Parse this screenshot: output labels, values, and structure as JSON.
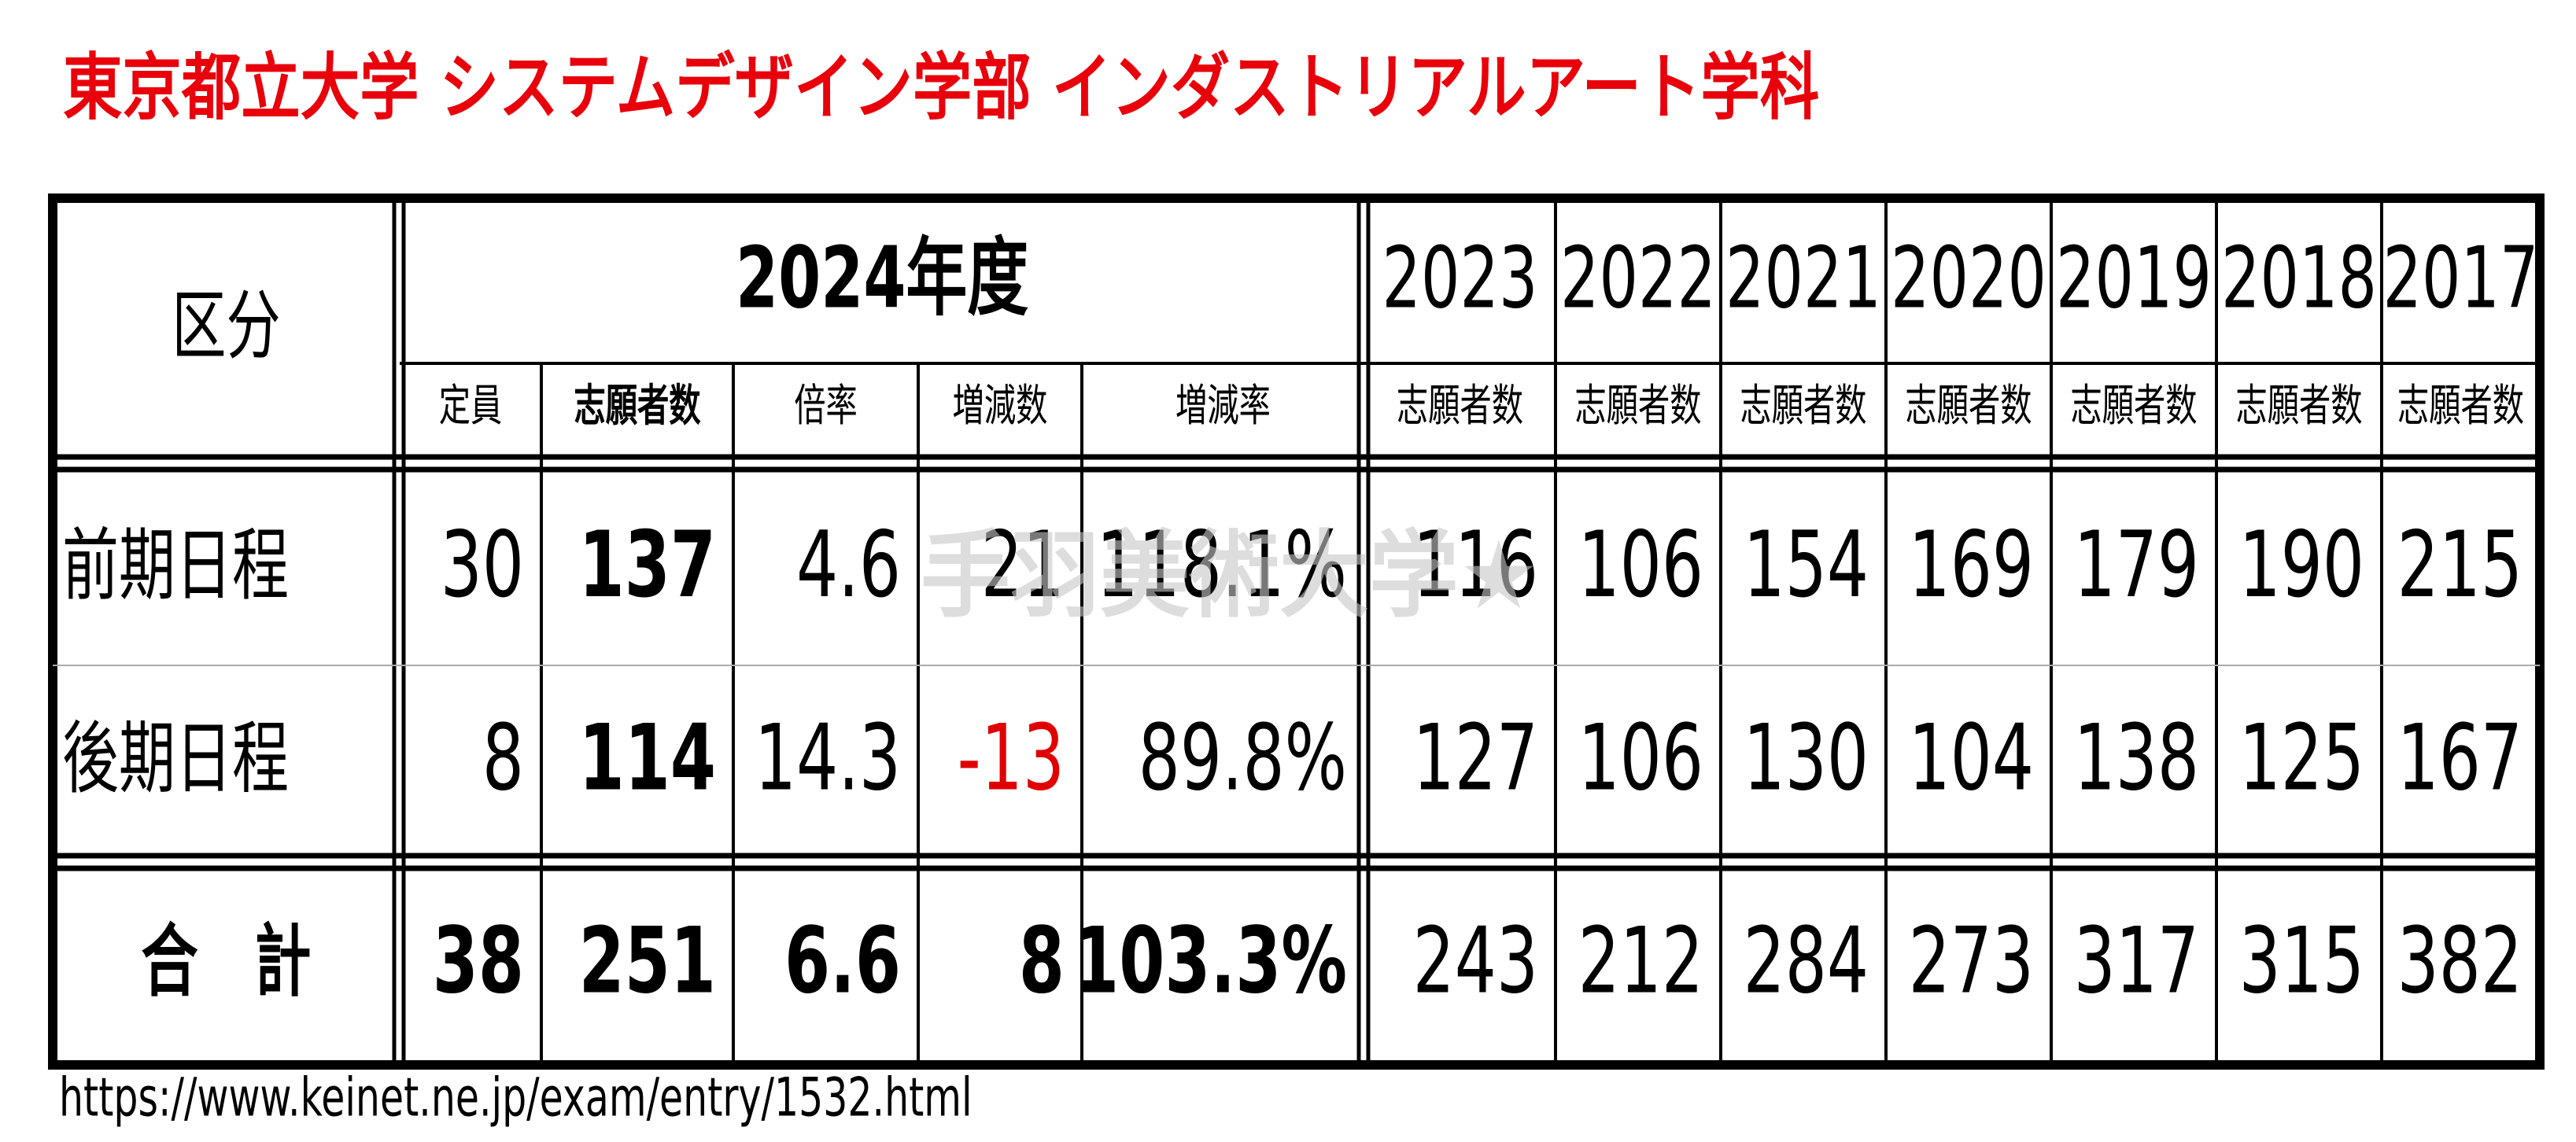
{
  "header": {
    "title": "東京都立大学 システムデザイン学部 インダストリアルアート学科"
  },
  "table": {
    "corner": "区分",
    "main_year": "2024年度",
    "past_years": [
      "2023",
      "2022",
      "2021",
      "2020",
      "2019",
      "2018",
      "2017"
    ],
    "main_sub_headers": [
      "定員",
      "志願者数",
      "倍率",
      "増減数",
      "増減率"
    ],
    "past_sub_headers": [
      "志願者数",
      "志願者数",
      "志願者数",
      "志願者数",
      "志願者数",
      "志願者数",
      "志願者数"
    ],
    "rows": [
      {
        "label": "前期日程",
        "cells": [
          "30",
          "137",
          "4.6",
          "21",
          "118.1%",
          "116",
          "106",
          "154",
          "169",
          "179",
          "190",
          "215"
        ]
      },
      {
        "label": "後期日程",
        "cells": [
          "8",
          "114",
          "14.3",
          "-13",
          "89.8%",
          "127",
          "106",
          "130",
          "104",
          "138",
          "125",
          "167"
        ]
      },
      {
        "label": "合　計",
        "cells": [
          "38",
          "251",
          "6.6",
          "8",
          "103.3%",
          "243",
          "212",
          "284",
          "273",
          "317",
          "315",
          "382"
        ]
      }
    ]
  },
  "watermark": "手羽美術大学★",
  "source": "https://www.keinet.ne.jp/exam/entry/1532.html"
}
